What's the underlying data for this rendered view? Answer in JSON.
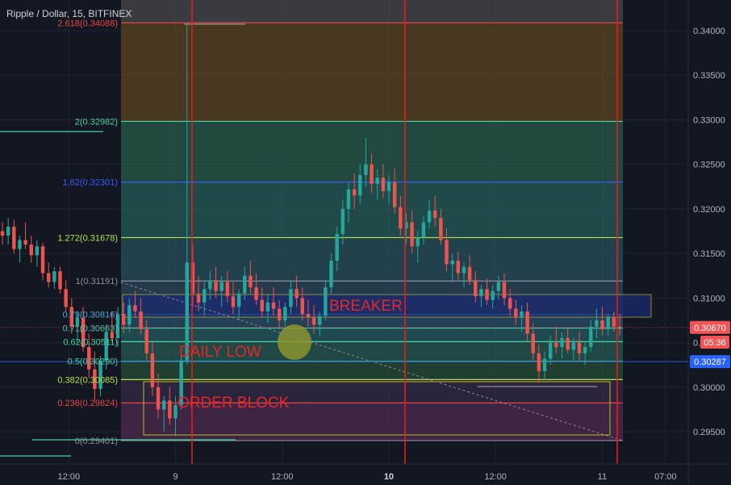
{
  "header": {
    "title": "Ripple / Dollar, 15, BITFINEX"
  },
  "colors": {
    "background": "#131722",
    "up": "#26a69a",
    "down": "#ef5350",
    "vline": "#e61d1d",
    "ellipse": "#8e9a2a",
    "order_block": "#a8a22a",
    "breaker_box": "#b8a94a"
  },
  "chart_data": {
    "type": "candlestick",
    "symbol": "Ripple / Dollar",
    "interval": "15",
    "exchange": "BITFINEX",
    "ylim": [
      0.2925,
      0.344
    ],
    "y_ticks": [
      "0.34000",
      "0.33500",
      "0.33000",
      "0.32500",
      "0.32000",
      "0.31500",
      "0.31000",
      "0.30500",
      "0.30000",
      "0.29500"
    ],
    "y_tick_values": [
      0.34,
      0.335,
      0.33,
      0.325,
      0.32,
      0.315,
      0.31,
      0.305,
      0.3,
      0.295
    ],
    "x_ticks": [
      {
        "label": "12:00",
        "t": 0.1
      },
      {
        "label": "9",
        "t": 0.255
      },
      {
        "label": "12:00",
        "t": 0.41
      },
      {
        "label": "10",
        "t": 0.565,
        "bold": true
      },
      {
        "label": "12:00",
        "t": 0.72
      },
      {
        "label": "11",
        "t": 0.875
      },
      {
        "label": "07:00",
        "t": 0.967
      }
    ],
    "fib_levels": [
      {
        "label": "2.618(0.34088)",
        "value": 0.34088,
        "color": "#e84545"
      },
      {
        "label": "2(0.32982)",
        "value": 0.32982,
        "color": "#4bd3a3"
      },
      {
        "label": "1.62(0.32301)",
        "value": 0.32301,
        "color": "#3a5bff"
      },
      {
        "label": "1.272(0.31678)",
        "value": 0.31678,
        "color": "#b4e04a"
      },
      {
        "label": "1(0.31191)",
        "value": 0.31191,
        "color": "#8c8f99"
      },
      {
        "label": "0.79(0.30816)",
        "value": 0.30816,
        "color": "#4aa8d8"
      },
      {
        "label": "0.71(0.30663)",
        "value": 0.30663,
        "color": "#4fc3a8"
      },
      {
        "label": "0.62(0.30511)",
        "value": 0.30511,
        "color": "#4bd3a3"
      },
      {
        "label": "0.5(0.30290)",
        "value": 0.3029,
        "color": "#4bd3a3"
      },
      {
        "label": "0.382(0.30085)",
        "value": 0.30085,
        "color": "#b4e04a"
      },
      {
        "label": "0.236(0.29824)",
        "value": 0.29824,
        "color": "#e84545"
      },
      {
        "label": "0(0.29401)",
        "value": 0.29401,
        "color": "#8c8f99"
      }
    ],
    "price_badges": [
      {
        "label": "0.30670",
        "value": 0.3067,
        "color": "#f05454"
      },
      {
        "label": "05:36",
        "value": 0.30505,
        "color": "#f05454"
      },
      {
        "label": "0.30287",
        "value": 0.30287,
        "color": "#2962ff"
      }
    ],
    "annotations": [
      {
        "text": "BREAKER"
      },
      {
        "text": "DAILY LOW"
      },
      {
        "text": "ORDER BLOCK"
      }
    ],
    "candles": [
      [
        0.3175,
        0.3185,
        0.316,
        0.317
      ],
      [
        0.317,
        0.319,
        0.316,
        0.318
      ],
      [
        0.318,
        0.3188,
        0.315,
        0.3155
      ],
      [
        0.3155,
        0.317,
        0.314,
        0.3165
      ],
      [
        0.3165,
        0.3185,
        0.3155,
        0.316
      ],
      [
        0.316,
        0.317,
        0.314,
        0.3148
      ],
      [
        0.3148,
        0.3165,
        0.3135,
        0.3158
      ],
      [
        0.3158,
        0.3162,
        0.312,
        0.3128
      ],
      [
        0.3128,
        0.314,
        0.3112,
        0.3118
      ],
      [
        0.3118,
        0.3135,
        0.311,
        0.313
      ],
      [
        0.313,
        0.3135,
        0.3105,
        0.311
      ],
      [
        0.311,
        0.312,
        0.3085,
        0.309
      ],
      [
        0.309,
        0.31,
        0.306,
        0.3068
      ],
      [
        0.3068,
        0.3085,
        0.305,
        0.3078
      ],
      [
        0.3078,
        0.309,
        0.304,
        0.3045
      ],
      [
        0.3045,
        0.306,
        0.301,
        0.302
      ],
      [
        0.302,
        0.304,
        0.2985,
        0.2998
      ],
      [
        0.2998,
        0.3035,
        0.299,
        0.303
      ],
      [
        0.303,
        0.307,
        0.302,
        0.3062
      ],
      [
        0.3062,
        0.3085,
        0.305,
        0.3055
      ],
      [
        0.3055,
        0.309,
        0.3045,
        0.3082
      ],
      [
        0.3082,
        0.3095,
        0.306,
        0.307
      ],
      [
        0.307,
        0.31,
        0.3062,
        0.3092
      ],
      [
        0.3092,
        0.3108,
        0.3078,
        0.3085
      ],
      [
        0.3085,
        0.31,
        0.306,
        0.3065
      ],
      [
        0.3065,
        0.3075,
        0.303,
        0.3038
      ],
      [
        0.3038,
        0.305,
        0.299,
        0.3
      ],
      [
        0.3,
        0.3015,
        0.2965,
        0.2975
      ],
      [
        0.2975,
        0.299,
        0.295,
        0.2985
      ],
      [
        0.2985,
        0.3,
        0.2958,
        0.2965
      ],
      [
        0.2965,
        0.299,
        0.2945,
        0.298
      ],
      [
        0.298,
        0.304,
        0.2975,
        0.303
      ],
      [
        0.303,
        0.3408,
        0.3025,
        0.314
      ],
      [
        0.314,
        0.316,
        0.309,
        0.3105
      ],
      [
        0.3105,
        0.3125,
        0.3085,
        0.3095
      ],
      [
        0.3095,
        0.3118,
        0.308,
        0.311
      ],
      [
        0.311,
        0.313,
        0.3098,
        0.312
      ],
      [
        0.312,
        0.3135,
        0.31,
        0.3108
      ],
      [
        0.3108,
        0.3125,
        0.309,
        0.3118
      ],
      [
        0.3118,
        0.313,
        0.3095,
        0.3102
      ],
      [
        0.3102,
        0.3118,
        0.3082,
        0.309
      ],
      [
        0.309,
        0.311,
        0.3075,
        0.3105
      ],
      [
        0.3105,
        0.3135,
        0.3098,
        0.3125
      ],
      [
        0.3125,
        0.3142,
        0.3105,
        0.3112
      ],
      [
        0.3112,
        0.3128,
        0.3092,
        0.3098
      ],
      [
        0.3098,
        0.3112,
        0.3078,
        0.3085
      ],
      [
        0.3085,
        0.3105,
        0.3072,
        0.3095
      ],
      [
        0.3095,
        0.3112,
        0.308,
        0.3088
      ],
      [
        0.3088,
        0.3098,
        0.3065,
        0.3075
      ],
      [
        0.3075,
        0.3095,
        0.3068,
        0.309
      ],
      [
        0.309,
        0.312,
        0.3082,
        0.311
      ],
      [
        0.311,
        0.3125,
        0.309,
        0.31
      ],
      [
        0.31,
        0.3112,
        0.3075,
        0.3082
      ],
      [
        0.3082,
        0.3098,
        0.3068,
        0.3078
      ],
      [
        0.3078,
        0.3092,
        0.306,
        0.307
      ],
      [
        0.307,
        0.3085,
        0.3058,
        0.308
      ],
      [
        0.308,
        0.312,
        0.3075,
        0.3112
      ],
      [
        0.3112,
        0.315,
        0.3105,
        0.3142
      ],
      [
        0.3142,
        0.318,
        0.313,
        0.3172
      ],
      [
        0.3172,
        0.321,
        0.316,
        0.32
      ],
      [
        0.32,
        0.323,
        0.3185,
        0.3222
      ],
      [
        0.3222,
        0.324,
        0.32,
        0.3215
      ],
      [
        0.3215,
        0.325,
        0.3205,
        0.3238
      ],
      [
        0.3238,
        0.328,
        0.3225,
        0.325
      ],
      [
        0.325,
        0.3262,
        0.3218,
        0.3228
      ],
      [
        0.3228,
        0.3245,
        0.321,
        0.3235
      ],
      [
        0.3235,
        0.325,
        0.3212,
        0.322
      ],
      [
        0.322,
        0.3238,
        0.3205,
        0.323
      ],
      [
        0.323,
        0.3245,
        0.3195,
        0.3202
      ],
      [
        0.3202,
        0.3215,
        0.317,
        0.3178
      ],
      [
        0.3178,
        0.3195,
        0.316,
        0.3185
      ],
      [
        0.3185,
        0.3198,
        0.315,
        0.3158
      ],
      [
        0.3158,
        0.3175,
        0.314,
        0.3168
      ],
      [
        0.3168,
        0.3192,
        0.316,
        0.3185
      ],
      [
        0.3185,
        0.321,
        0.3178,
        0.3198
      ],
      [
        0.3198,
        0.3215,
        0.318,
        0.319
      ],
      [
        0.319,
        0.32,
        0.316,
        0.3165
      ],
      [
        0.3165,
        0.3178,
        0.313,
        0.3138
      ],
      [
        0.3138,
        0.315,
        0.3118,
        0.3142
      ],
      [
        0.3142,
        0.3152,
        0.312,
        0.3128
      ],
      [
        0.3128,
        0.314,
        0.3112,
        0.3135
      ],
      [
        0.3135,
        0.3148,
        0.3115,
        0.312
      ],
      [
        0.312,
        0.313,
        0.3095,
        0.3102
      ],
      [
        0.3102,
        0.3115,
        0.309,
        0.311
      ],
      [
        0.311,
        0.3122,
        0.3092,
        0.3098
      ],
      [
        0.3098,
        0.3115,
        0.3088,
        0.3108
      ],
      [
        0.3108,
        0.3125,
        0.3098,
        0.3118
      ],
      [
        0.3118,
        0.3128,
        0.3092,
        0.31
      ],
      [
        0.31,
        0.311,
        0.308,
        0.3088
      ],
      [
        0.3088,
        0.3098,
        0.307,
        0.3078
      ],
      [
        0.3078,
        0.3092,
        0.3062,
        0.3085
      ],
      [
        0.3085,
        0.3095,
        0.3052,
        0.306
      ],
      [
        0.306,
        0.3072,
        0.303,
        0.3038
      ],
      [
        0.3038,
        0.3048,
        0.3005,
        0.3018
      ],
      [
        0.3018,
        0.304,
        0.3008,
        0.3032
      ],
      [
        0.3032,
        0.3058,
        0.3025,
        0.305
      ],
      [
        0.305,
        0.3068,
        0.3038,
        0.3045
      ],
      [
        0.3045,
        0.3062,
        0.3032,
        0.3055
      ],
      [
        0.3055,
        0.3066,
        0.3038,
        0.3042
      ],
      [
        0.3042,
        0.3056,
        0.303,
        0.305
      ],
      [
        0.305,
        0.3062,
        0.303,
        0.3038
      ],
      [
        0.3038,
        0.3052,
        0.3025,
        0.3045
      ],
      [
        0.3045,
        0.3075,
        0.304,
        0.3068
      ],
      [
        0.3068,
        0.3088,
        0.3055,
        0.3075
      ],
      [
        0.3075,
        0.309,
        0.3058,
        0.3065
      ],
      [
        0.3065,
        0.3082,
        0.3058,
        0.3078
      ],
      [
        0.3078,
        0.3085,
        0.3062,
        0.3068
      ],
      [
        0.3068,
        0.3082,
        0.3058,
        0.3067
      ]
    ]
  }
}
